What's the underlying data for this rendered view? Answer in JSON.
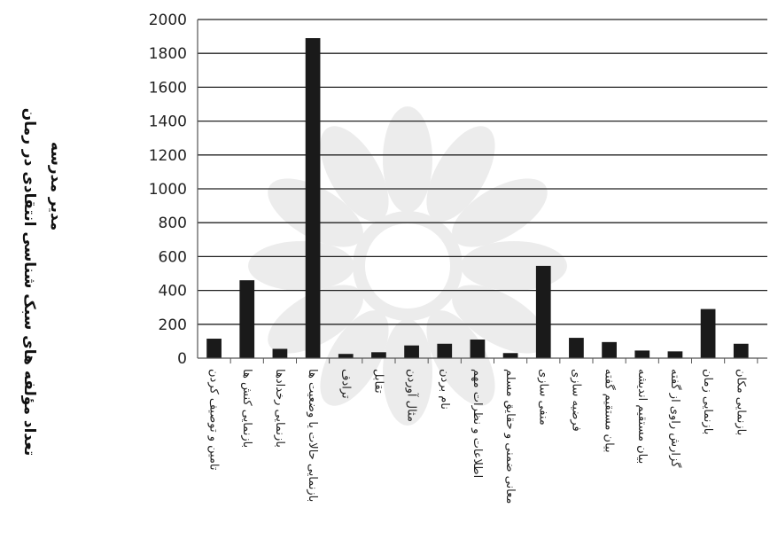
{
  "chart_data": {
    "type": "bar",
    "title": "",
    "ylabel_line1": "تعداد مؤلفه های سبک شناسی انتقادی در رمان",
    "ylabel_line2": "مدیر مدرسه",
    "xlabel": "",
    "ylim": [
      0,
      2000
    ],
    "yticks": [
      "0",
      "200",
      "400",
      "600",
      "800",
      "1000",
      "1200",
      "1400",
      "1600",
      "1800",
      "2000"
    ],
    "grid": true,
    "legend": "none",
    "categories": [
      "تامین و توصیف کردن",
      "بازنمایی کنش ها",
      "بازنمایی رخدادها",
      "بازنمایی حالات یا وضعیت ها",
      "ترادف",
      "تقابل",
      "مثال آوردن",
      "نام بردن",
      "اطلاعات و نظرات مهم",
      "معانی ضمنی و حقایق مسلم",
      "منفی سازی",
      "فرضیه سازی",
      "بیان مستقیم گفته",
      "بیان مستقیم اندیشه",
      "گزارش راوی از گفته",
      "بازنمایی زمان",
      "بازنمایی مکان"
    ],
    "values": [
      115,
      460,
      55,
      1890,
      25,
      35,
      75,
      85,
      110,
      30,
      545,
      120,
      95,
      45,
      40,
      290,
      85
    ],
    "bar_color": "#1a1a1a",
    "axis_color": "#555555",
    "grid_color": "#222222"
  }
}
